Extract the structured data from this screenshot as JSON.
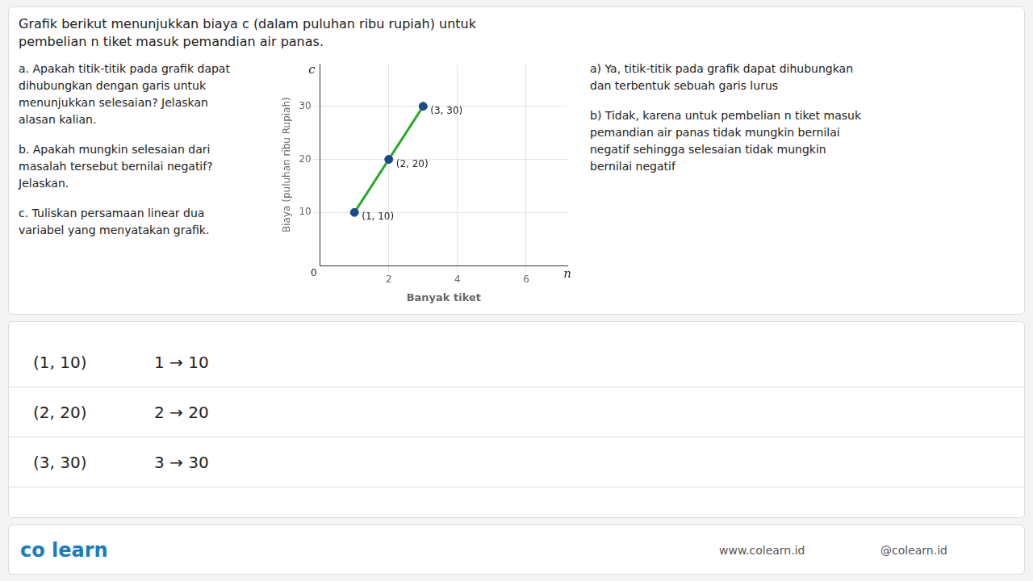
{
  "chart_data": {
    "type": "scatter",
    "title": "Grafik berikut menunjukkan biaya c (dalam puluhan ribu rupiah) untuk\npembelian n tiket masuk pemandian air panas.",
    "x_label": "Banyak tiket",
    "y_label": "Biaya (puluhan ribu Rupiah)",
    "x": [
      1,
      2,
      3
    ],
    "series": [
      {
        "type": "line",
        "color": "#22aa22",
        "marker": "none",
        "line_style": "solid",
        "values": [
          10,
          20,
          30
        ]
      },
      {
        "type": "scatter",
        "color": "#1a4a8a",
        "marker": "circle",
        "values": [
          10,
          20,
          30
        ]
      }
    ],
    "xlim": [
      0,
      7.2
    ],
    "xticks": [
      2,
      4,
      6
    ],
    "ylim": [
      0,
      38
    ],
    "yticks": [
      10,
      20,
      30
    ],
    "grid": true,
    "annotations": [
      {
        "x": 1,
        "y": 10,
        "text": "(1, 10)"
      },
      {
        "x": 2,
        "y": 20,
        "text": "(2, 20)"
      },
      {
        "x": 3,
        "y": 30,
        "text": "(3, 30)"
      },
      {
        "x": 0,
        "y": 0,
        "text": "0"
      },
      {
        "x": 0,
        "y": 38,
        "text": "c"
      },
      {
        "x": 7.2,
        "y": 0,
        "text": "n"
      },
      {
        "text": "a. Apakah titik-titik pada grafik dapat\ndihubungkan dengan garis untuk\nmenunjukkan selesaian? Jelaskan\nalasan kalian."
      },
      {
        "text": "b. Apakah mungkin selesaian dari\nmasalah tersebut bernilai negatif?\nJelaskan."
      },
      {
        "text": "c. Tuliskan persamaan linear dua\nvariabel yang menyatakan grafik."
      },
      {
        "text": "a) Ya, titik-titik pada grafik dapat dihubungkan\ndan terbentuk sebuah garis lurus"
      },
      {
        "text": "b) Tidak, karena untuk pembelian n tiket masuk\npemandian air panas tidak mungkin bernilai\nnegatif sehingga selesaian tidak mungkin\nbernilai negatif"
      },
      {
        "text": "(1, 10)"
      },
      {
        "text": "1 → 10"
      },
      {
        "text": "(2, 20)"
      },
      {
        "text": "2 → 20"
      },
      {
        "text": "(3, 30)"
      },
      {
        "text": "3 → 30"
      },
      {
        "text": "co learn"
      },
      {
        "text": "www.colearn.id"
      },
      {
        "text": "@colearn.id"
      }
    ]
  }
}
